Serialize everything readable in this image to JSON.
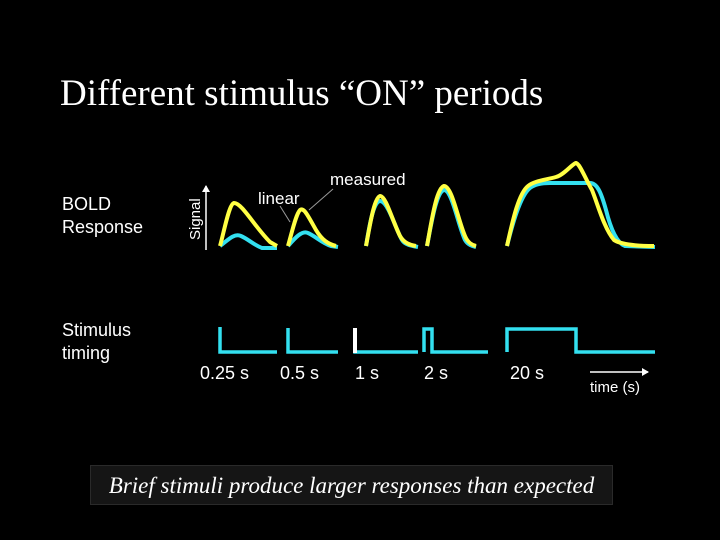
{
  "title": "Different stimulus “ON” periods",
  "row_labels": {
    "bold_line1": "BOLD",
    "bold_line2": "Response",
    "stim_line1": "Stimulus",
    "stim_line2": "timing"
  },
  "axis": {
    "y_label": "Signal",
    "x_label": "time (s)"
  },
  "legend": {
    "linear": "linear",
    "measured": "measured"
  },
  "colors": {
    "linear": "#33E0F0",
    "measured": "#FFFF44",
    "background": "#000000"
  },
  "durations": [
    "0.25 s",
    "0.5 s",
    "1 s",
    "2 s",
    "20 s"
  ],
  "caption": "Brief stimuli produce larger responses than expected"
}
